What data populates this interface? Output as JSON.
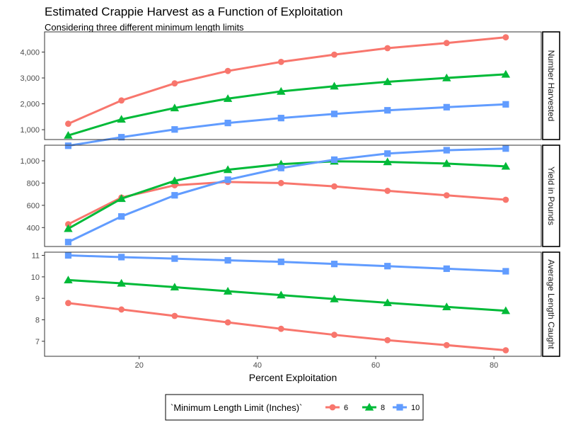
{
  "chart_data": {
    "type": "line",
    "title": "Estimated Crappie Harvest as a Function of Exploitation",
    "subtitle": "Considering three different minimum length limits",
    "xlabel": "Percent Exploitation",
    "x": [
      8,
      17,
      26,
      35,
      44,
      53,
      62,
      72,
      82
    ],
    "xlim": [
      4,
      88
    ],
    "xticks": [
      20,
      40,
      60,
      80
    ],
    "legend": {
      "title": "`Minimum Length Limit (Inches)`",
      "position": "bottom",
      "entries": [
        {
          "label": "6",
          "color": "#F8766D",
          "shape": "circle"
        },
        {
          "label": "8",
          "color": "#00BA38",
          "shape": "triangle"
        },
        {
          "label": "10",
          "color": "#619CFF",
          "shape": "square"
        }
      ]
    },
    "panels": [
      {
        "strip": "Number Harvested",
        "ylim": [
          620,
          4780
        ],
        "yticks": [
          1000,
          2000,
          3000,
          4000
        ],
        "ytick_labels": [
          "1,000",
          "2,000",
          "3,000",
          "4,000"
        ],
        "series": [
          {
            "name": "6",
            "values": [
              1230,
              2130,
              2790,
              3270,
              3620,
              3900,
              4150,
              4350,
              4570
            ]
          },
          {
            "name": "8",
            "values": [
              780,
              1400,
              1840,
              2200,
              2480,
              2680,
              2850,
              3000,
              3140
            ]
          },
          {
            "name": "10",
            "values": [
              380,
              710,
              1010,
              1260,
              1450,
              1610,
              1750,
              1870,
              1980
            ]
          }
        ]
      },
      {
        "strip": "Yield in Pounds",
        "ylim": [
          230,
          1140
        ],
        "yticks": [
          400,
          600,
          800,
          1000
        ],
        "ytick_labels": [
          "400",
          "600",
          "800",
          "1,000"
        ],
        "series": [
          {
            "name": "6",
            "values": [
              430,
              670,
              780,
              810,
              800,
              770,
              730,
              690,
              650
            ]
          },
          {
            "name": "8",
            "values": [
              390,
              660,
              820,
              920,
              970,
              995,
              990,
              975,
              950
            ]
          },
          {
            "name": "10",
            "values": [
              270,
              500,
              690,
              830,
              935,
              1010,
              1065,
              1095,
              1110
            ]
          }
        ]
      },
      {
        "strip": "Average Length Caught",
        "ylim": [
          6.3,
          11.15
        ],
        "yticks": [
          7,
          8,
          9,
          10,
          11
        ],
        "ytick_labels": [
          "7",
          "8",
          "9",
          "10",
          "11"
        ],
        "series": [
          {
            "name": "6",
            "values": [
              8.78,
              8.48,
              8.18,
              7.88,
              7.58,
              7.3,
              7.05,
              6.82,
              6.58
            ]
          },
          {
            "name": "8",
            "values": [
              9.85,
              9.7,
              9.52,
              9.33,
              9.15,
              8.97,
              8.79,
              8.6,
              8.42
            ]
          },
          {
            "name": "10",
            "values": [
              11.0,
              10.92,
              10.85,
              10.77,
              10.7,
              10.6,
              10.5,
              10.38,
              10.26
            ]
          }
        ]
      }
    ]
  }
}
